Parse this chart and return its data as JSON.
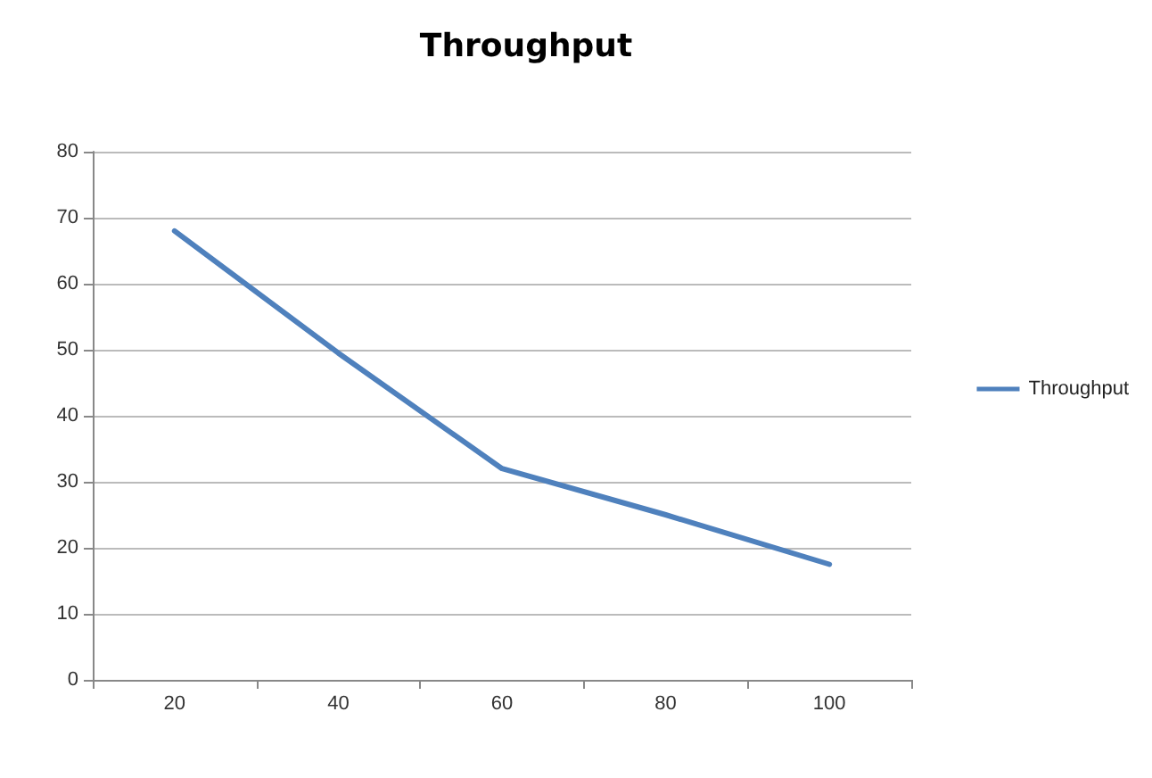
{
  "chart_data": {
    "type": "line",
    "title": "Throughput",
    "categories": [
      "20",
      "40",
      "60",
      "80",
      "100"
    ],
    "series": [
      {
        "name": "Throughput",
        "color": "#4f81bd",
        "values": [
          68,
          49.5,
          32,
          25,
          17.5
        ]
      }
    ],
    "ylim": [
      0,
      80
    ],
    "yticks": [
      0,
      10,
      20,
      30,
      40,
      50,
      60,
      70,
      80
    ],
    "grid": "y",
    "legend": "right",
    "marker": "none",
    "line_style": "solid"
  }
}
